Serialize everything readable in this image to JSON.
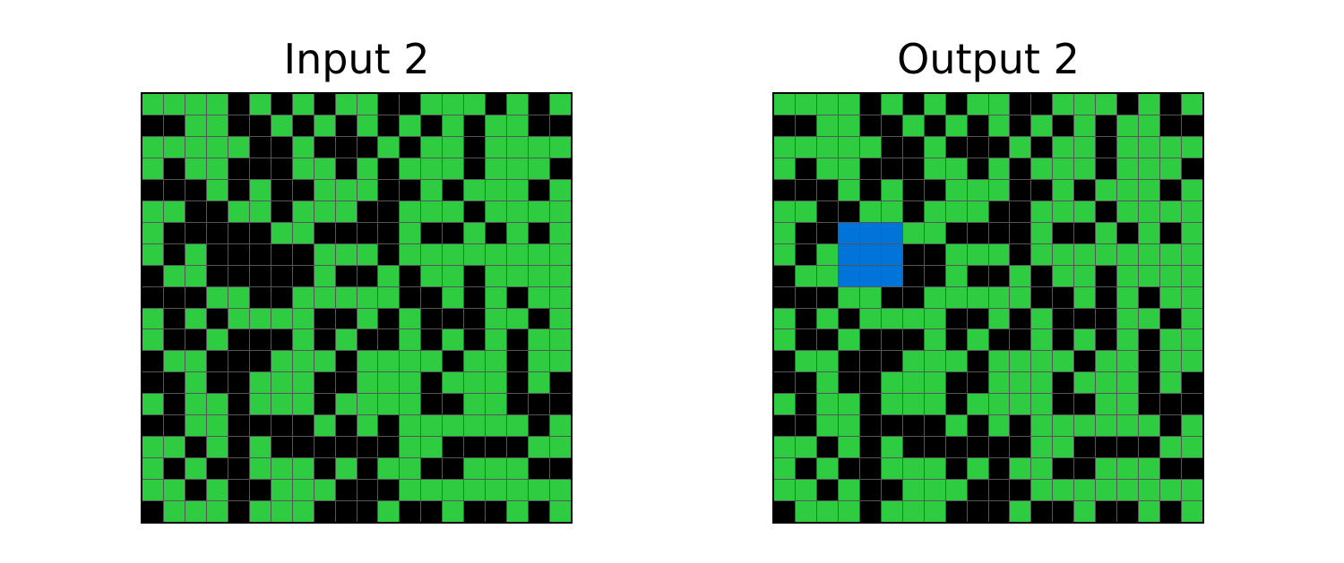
{
  "colors": {
    "0": "#000000",
    "1": "#2ECC40",
    "2": "#0074D9",
    "gridline": "#555555",
    "border": "#000000"
  },
  "panels": [
    {
      "title": "Input 2",
      "rows": [
        "11110101011001110101",
        "00110010101010101100",
        "11111001000101101111",
        "10110001101011101110",
        "00010100111001011101",
        "11001101110011101111",
        "10000011000010010101",
        "10100000111011111111",
        "01100000100101101111",
        "00011001111100101011",
        "10101111001010001101",
        "10010001010010101011",
        "01100011101111011011",
        "00100111001110111010",
        "10110111011110011000",
        "00110000101011111101",
        "11010100000011000011",
        "10100111010110011100",
        "11010011100011111111",
        "01110111000100100101"
      ]
    },
    {
      "title": "Output 2",
      "rows": [
        "11110101011001110101",
        "00110010101010101100",
        "11111001000101101111",
        "10110001101011101110",
        "00010100111001011101",
        "11001101110011101111",
        "10022211000010010101",
        "10122200111011111111",
        "01122200100101101111",
        "00011001111100101011",
        "10101111001010001101",
        "10010001010010101011",
        "01100011101111011011",
        "00100111001110111010",
        "10110111011110011000",
        "00110000101011111101",
        "11010100000011000011",
        "10100111010110011100",
        "11010011100011111111",
        "01110111000100100101"
      ]
    }
  ]
}
